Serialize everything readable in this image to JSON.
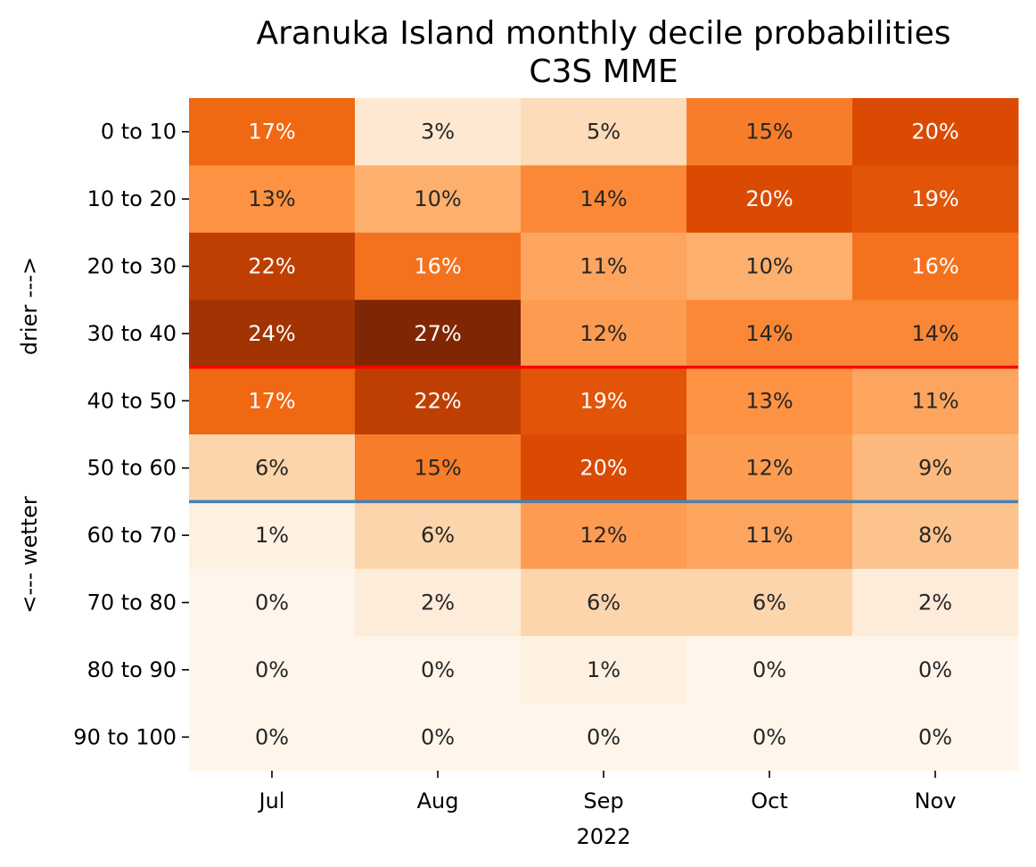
{
  "chart_data": {
    "type": "heatmap",
    "title": "Aranuka Island monthly decile probabilities",
    "subtitle": "C3S MME",
    "xlabel": "2022",
    "ylabel_top": "drier --->",
    "ylabel_bottom": "<--- wetter",
    "columns": [
      "Jul",
      "Aug",
      "Sep",
      "Oct",
      "Nov"
    ],
    "rows": [
      "0 to 10",
      "10 to 20",
      "20 to 30",
      "30 to 40",
      "40 to 50",
      "50 to 60",
      "60 to 70",
      "70 to 80",
      "80 to 90",
      "90 to 100"
    ],
    "values": [
      [
        17,
        3,
        5,
        15,
        20
      ],
      [
        13,
        10,
        14,
        20,
        19
      ],
      [
        22,
        16,
        11,
        10,
        16
      ],
      [
        24,
        27,
        12,
        14,
        14
      ],
      [
        17,
        22,
        19,
        13,
        11
      ],
      [
        6,
        15,
        20,
        12,
        9
      ],
      [
        1,
        6,
        12,
        11,
        8
      ],
      [
        0,
        2,
        6,
        6,
        2
      ],
      [
        0,
        0,
        1,
        0,
        0
      ],
      [
        0,
        0,
        0,
        0,
        0
      ]
    ],
    "value_suffix": "%",
    "colormap": "Oranges",
    "vmin": 0,
    "vmax": 27,
    "reference_lines": [
      {
        "between_rows": [
          "30 to 40",
          "40 to 50"
        ],
        "color": "#ff0000"
      },
      {
        "between_rows": [
          "50 to 60",
          "60 to 70"
        ],
        "color": "#4682b4"
      }
    ],
    "colorbar": false,
    "grid": false
  }
}
